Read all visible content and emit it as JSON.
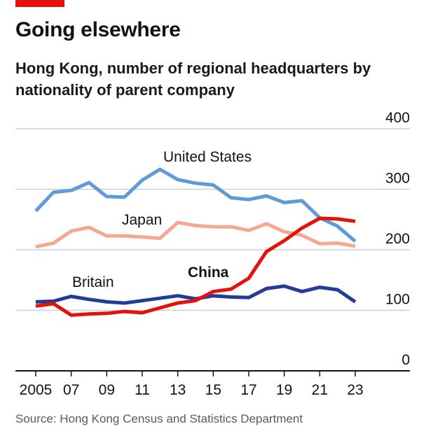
{
  "header": {
    "title": "Going elsewhere",
    "subtitle": "Hong Kong, number of regional headquarters by nationality of parent company"
  },
  "footer": {
    "source": "Source: Hong Kong Census and Statistics Department"
  },
  "colors": {
    "accent": "#e3120b",
    "united_states": "#5e9bd8",
    "japan": "#f4a791",
    "britain": "#233c98",
    "china": "#e3120b",
    "gridline": "#d0d0d0",
    "axis": "#121212"
  },
  "chart_data": {
    "type": "line",
    "title": "Going elsewhere",
    "subtitle": "Hong Kong, number of regional headquarters by nationality of parent company",
    "xlabel": "",
    "ylabel": "",
    "x": [
      2005,
      2006,
      2007,
      2008,
      2009,
      2010,
      2011,
      2012,
      2013,
      2014,
      2015,
      2016,
      2017,
      2018,
      2019,
      2020,
      2021,
      2022,
      2023
    ],
    "xlim": [
      2005,
      2023
    ],
    "ylim": [
      0,
      400
    ],
    "x_tick_labels": [
      "2005",
      "07",
      "09",
      "11",
      "13",
      "15",
      "17",
      "19",
      "21",
      "23"
    ],
    "x_tick_values": [
      2005,
      2007,
      2009,
      2011,
      2013,
      2015,
      2017,
      2019,
      2021,
      2023
    ],
    "y_tick_labels": [
      "0",
      "100",
      "200",
      "300",
      "400"
    ],
    "y_tick_values": [
      0,
      100,
      200,
      300,
      400
    ],
    "grid": true,
    "legend": "direct labels on lines",
    "series": [
      {
        "name": "United States",
        "key": "united_states",
        "label_bold": false,
        "values": [
          264,
          295,
          298,
          311,
          288,
          287,
          315,
          333,
          316,
          310,
          307,
          286,
          283,
          289,
          278,
          281,
          253,
          239,
          214
        ]
      },
      {
        "name": "Japan",
        "key": "japan",
        "label_bold": false,
        "values": [
          205,
          211,
          231,
          237,
          223,
          223,
          221,
          219,
          245,
          240,
          238,
          238,
          232,
          243,
          230,
          224,
          210,
          211,
          206
        ]
      },
      {
        "name": "Britain",
        "key": "britain",
        "label_bold": false,
        "values": [
          114,
          115,
          123,
          118,
          114,
          112,
          116,
          120,
          124,
          119,
          124,
          122,
          121,
          136,
          140,
          131,
          138,
          134,
          114
        ]
      },
      {
        "name": "China",
        "key": "china",
        "label_bold": true,
        "values": [
          107,
          111,
          92,
          94,
          95,
          98,
          96,
          104,
          112,
          116,
          131,
          135,
          153,
          197,
          215,
          236,
          252,
          251,
          247
        ]
      }
    ]
  }
}
